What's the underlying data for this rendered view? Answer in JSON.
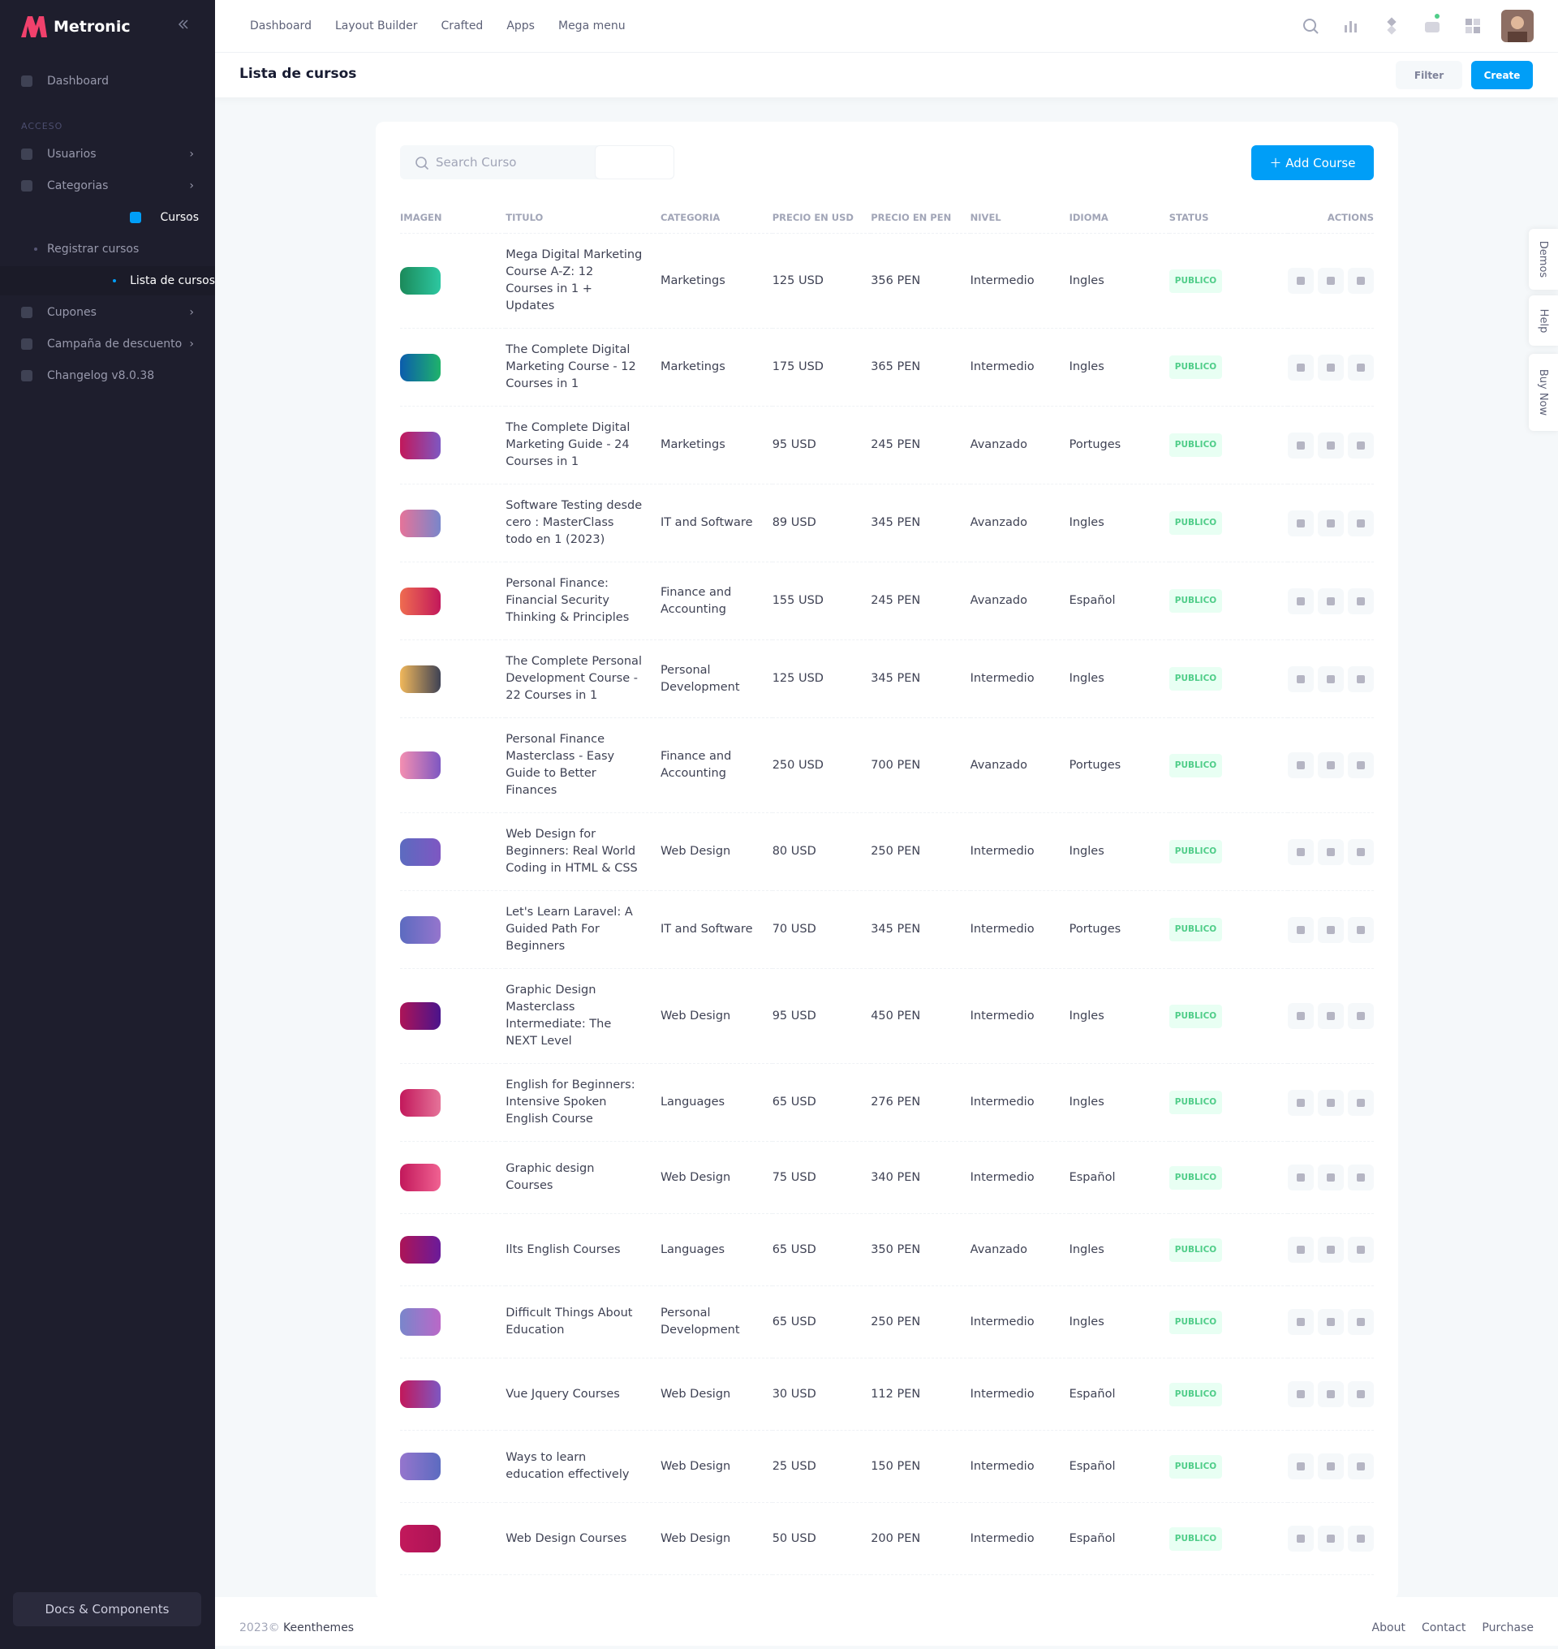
{
  "sidebar": {
    "brand": "Metronic",
    "items": [
      {
        "label": "Dashboard"
      },
      {
        "section": "ACCESO"
      },
      {
        "label": "Usuarios"
      },
      {
        "label": "Categorias"
      },
      {
        "label": "Cursos"
      },
      {
        "label": "Registrar cursos"
      },
      {
        "label": "Lista de cursos"
      },
      {
        "label": "Cupones"
      },
      {
        "label": "Campaña de descuento"
      },
      {
        "label": "Changelog v8.0.38"
      }
    ],
    "footer_button": "Docs & Components"
  },
  "header": {
    "nav": [
      "Dashboard",
      "Layout Builder",
      "Crafted",
      "Apps",
      "Mega menu"
    ]
  },
  "toolbar": {
    "title": "Lista de cursos",
    "filter": "Filter",
    "create": "Create"
  },
  "card": {
    "search_placeholder": "Search Curso",
    "add_button": "Add Course"
  },
  "table": {
    "columns": [
      "IMAGEN",
      "TITULO",
      "CATEGORIA",
      "PRECIO EN USD",
      "PRECIO EN PEN",
      "NIVEL",
      "IDIOMA",
      "STATUS",
      "ACTIONS"
    ],
    "rows": [
      [
        "Mega Digital Marketing Course A-Z: 12 Courses in 1 + Updates",
        "Marketings",
        "125 USD",
        "356 PEN",
        "Intermedio",
        "Ingles",
        "PUBLICO"
      ],
      [
        "The Complete Digital Marketing Course - 12 Courses in 1",
        "Marketings",
        "175 USD",
        "365 PEN",
        "Intermedio",
        "Ingles",
        "PUBLICO"
      ],
      [
        "The Complete Digital Marketing Guide - 24 Courses in 1",
        "Marketings",
        "95 USD",
        "245 PEN",
        "Avanzado",
        "Portuges",
        "PUBLICO"
      ],
      [
        "Software Testing desde cero : MasterClass todo en 1 (2023)",
        "IT and Software",
        "89 USD",
        "345 PEN",
        "Avanzado",
        "Ingles",
        "PUBLICO"
      ],
      [
        "Personal Finance: Financial Security Thinking & Principles",
        "Finance and Accounting",
        "155 USD",
        "245 PEN",
        "Avanzado",
        "Español",
        "PUBLICO"
      ],
      [
        "The Complete Personal Development Course - 22 Courses in 1",
        "Personal Development",
        "125 USD",
        "345 PEN",
        "Intermedio",
        "Ingles",
        "PUBLICO"
      ],
      [
        "Personal Finance Masterclass - Easy Guide to Better Finances",
        "Finance and Accounting",
        "250 USD",
        "700 PEN",
        "Avanzado",
        "Portuges",
        "PUBLICO"
      ],
      [
        "Web Design for Beginners: Real World Coding in HTML & CSS",
        "Web Design",
        "80 USD",
        "250 PEN",
        "Intermedio",
        "Ingles",
        "PUBLICO"
      ],
      [
        "Let's Learn Laravel: A Guided Path For Beginners",
        "IT and Software",
        "70 USD",
        "345 PEN",
        "Intermedio",
        "Portuges",
        "PUBLICO"
      ],
      [
        "Graphic Design Masterclass Intermediate: The NEXT Level",
        "Web Design",
        "95 USD",
        "450 PEN",
        "Intermedio",
        "Ingles",
        "PUBLICO"
      ],
      [
        "English for Beginners: Intensive Spoken English Course",
        "Languages",
        "65 USD",
        "276 PEN",
        "Intermedio",
        "Ingles",
        "PUBLICO"
      ],
      [
        "Graphic design Courses",
        "Web Design",
        "75 USD",
        "340 PEN",
        "Intermedio",
        "Español",
        "PUBLICO"
      ],
      [
        "Ilts English Courses",
        "Languages",
        "65 USD",
        "350 PEN",
        "Avanzado",
        "Ingles",
        "PUBLICO"
      ],
      [
        "Difficult Things About Education",
        "Personal Development",
        "65 USD",
        "250 PEN",
        "Intermedio",
        "Ingles",
        "PUBLICO"
      ],
      [
        "Vue Jquery Courses",
        "Web Design",
        "30 USD",
        "112 PEN",
        "Intermedio",
        "Español",
        "PUBLICO"
      ],
      [
        "Ways to learn education effectively",
        "Web Design",
        "25 USD",
        "150 PEN",
        "Intermedio",
        "Español",
        "PUBLICO"
      ],
      [
        "Web Design Courses",
        "Web Design",
        "50 USD",
        "200 PEN",
        "Intermedio",
        "Español",
        "PUBLICO"
      ]
    ]
  },
  "footer": {
    "year": "2023©",
    "company": "Keenthemes",
    "links": [
      "About",
      "Contact",
      "Purchase"
    ]
  },
  "side_tabs": [
    "Demos",
    "Help",
    "Buy Now"
  ]
}
